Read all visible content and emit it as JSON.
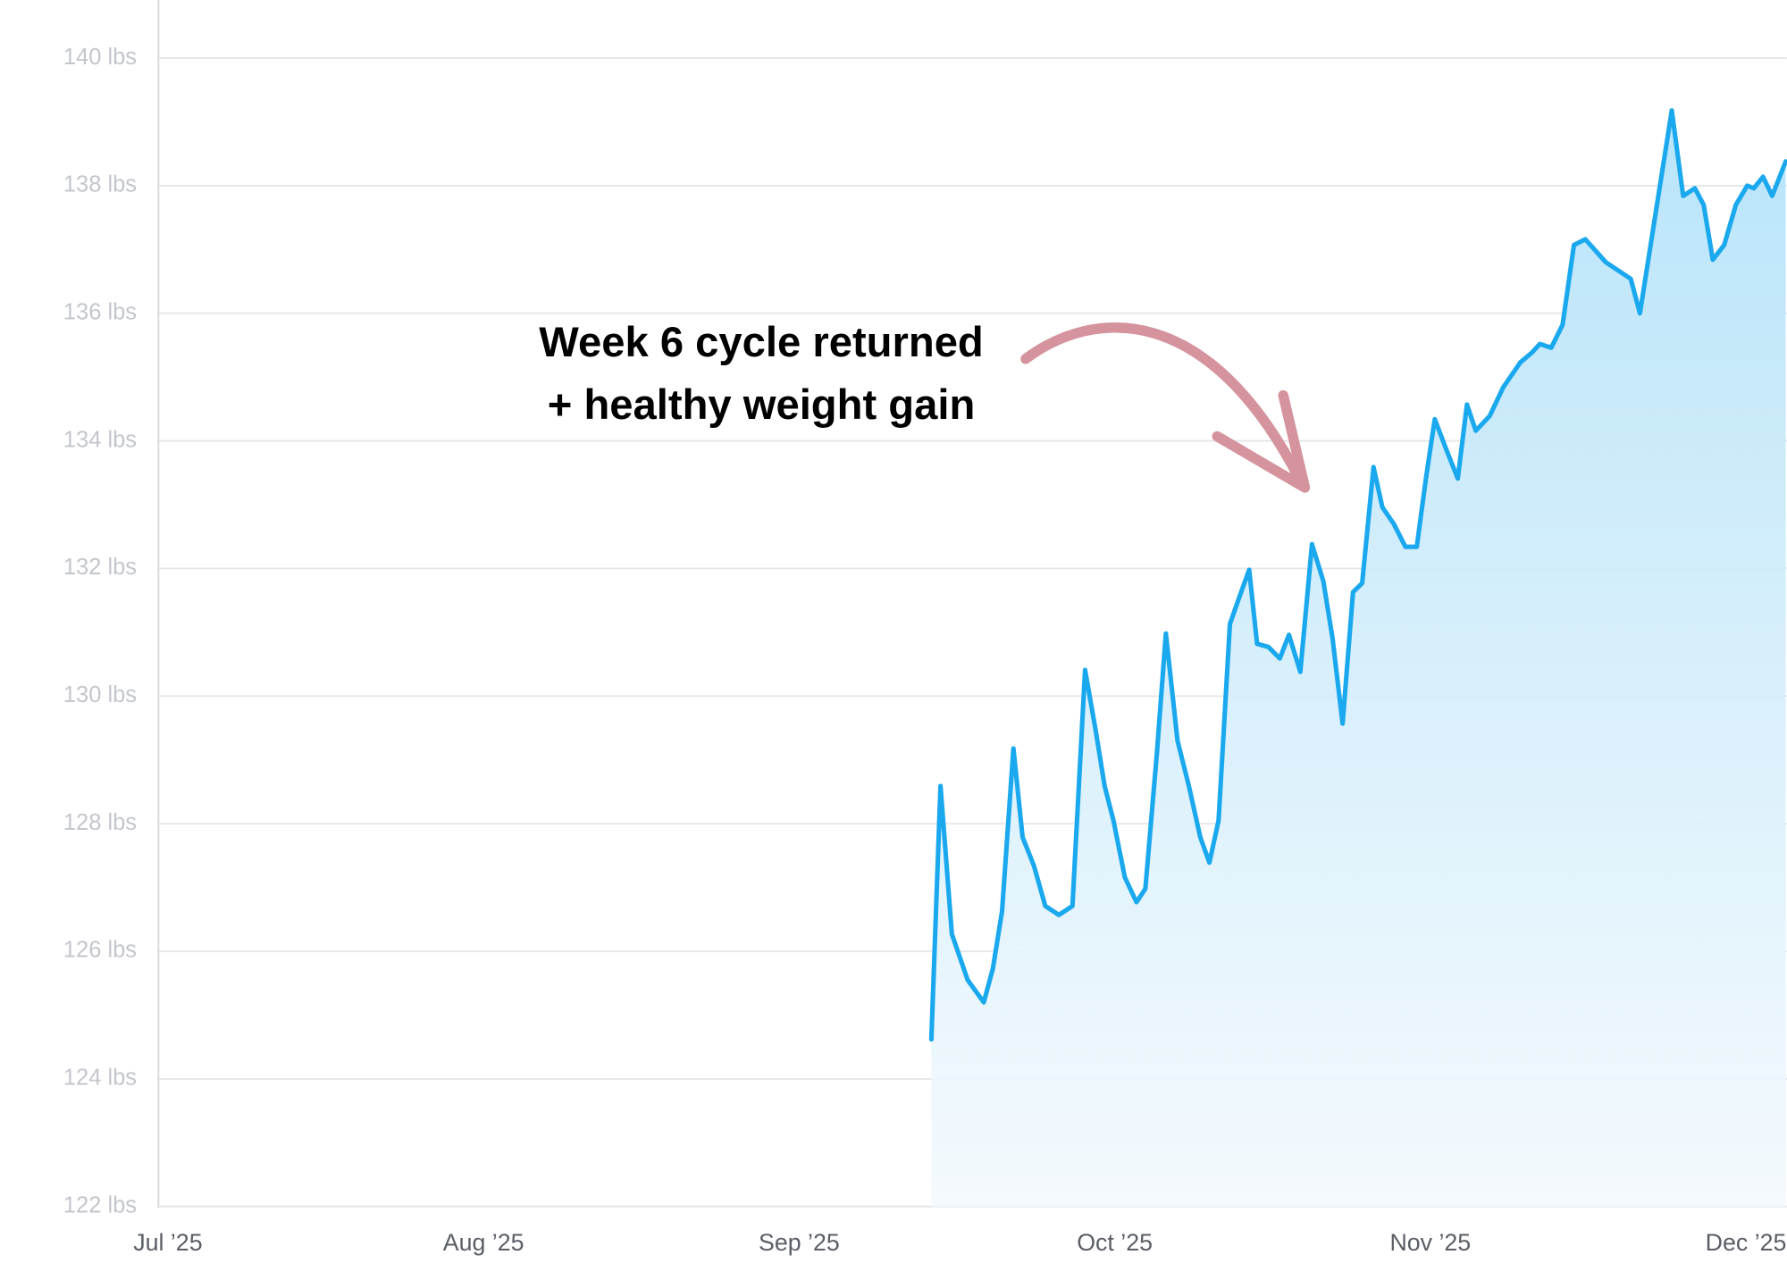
{
  "chart_data": {
    "type": "line",
    "annotation": [
      "Week 6 cycle returned",
      "+ healthy weight gain"
    ],
    "color": "#1aa8ee",
    "area": true,
    "grid": true,
    "x": [
      9.419,
      9.448,
      9.484,
      9.534,
      9.585,
      9.614,
      9.643,
      9.679,
      9.708,
      9.744,
      9.78,
      9.823,
      9.866,
      9.906,
      9.939,
      9.968,
      9.996,
      10.032,
      10.069,
      10.097,
      10.134,
      10.162,
      10.199,
      10.235,
      10.271,
      10.3,
      10.329,
      10.365,
      10.394,
      10.426,
      10.451,
      10.487,
      10.523,
      10.552,
      10.588,
      10.625,
      10.661,
      10.69,
      10.722,
      10.755,
      10.784,
      10.82,
      10.848,
      10.884,
      10.921,
      10.957,
      10.986,
      11.014,
      11.051,
      11.087,
      11.116,
      11.144,
      11.188,
      11.231,
      11.285,
      11.321,
      11.347,
      11.383,
      11.419,
      11.455,
      11.491,
      11.556,
      11.635,
      11.664,
      11.718,
      11.765,
      11.801,
      11.838,
      11.866,
      11.895,
      11.931,
      11.968,
      12.004,
      12.025,
      12.054,
      12.083,
      12.126
    ],
    "values": [
      124.62,
      128.59,
      126.27,
      125.55,
      125.2,
      125.73,
      126.63,
      129.18,
      127.79,
      127.34,
      126.71,
      126.57,
      126.71,
      130.41,
      129.48,
      128.59,
      128.05,
      127.16,
      126.77,
      126.98,
      129.13,
      130.98,
      129.3,
      128.59,
      127.79,
      127.39,
      128.05,
      131.13,
      131.54,
      131.98,
      130.82,
      130.77,
      130.59,
      130.96,
      130.38,
      132.38,
      131.8,
      130.91,
      129.57,
      131.63,
      131.77,
      133.59,
      132.96,
      132.7,
      132.34,
      132.34,
      133.41,
      134.34,
      133.86,
      133.41,
      134.57,
      134.16,
      134.39,
      134.84,
      135.23,
      135.38,
      135.52,
      135.46,
      135.82,
      137.07,
      137.16,
      136.8,
      136.54,
      136.0,
      137.7,
      139.18,
      137.84,
      137.96,
      137.7,
      136.84,
      137.07,
      137.7,
      138.0,
      137.96,
      138.14,
      137.84,
      138.38
    ],
    "xlim": [
      6.97,
      12.13
    ],
    "xticks": [
      {
        "value": 7,
        "label": "Jul ’25"
      },
      {
        "value": 8,
        "label": "Aug ’25"
      },
      {
        "value": 9,
        "label": "Sep ’25"
      },
      {
        "value": 10,
        "label": "Oct ’25"
      },
      {
        "value": 11,
        "label": "Nov ’25"
      },
      {
        "value": 12,
        "label": "Dec ’25"
      }
    ],
    "ylim": [
      122,
      140
    ],
    "yticks": [
      {
        "value": 122,
        "label": "122 lbs"
      },
      {
        "value": 124,
        "label": "124 lbs"
      },
      {
        "value": 126,
        "label": "126 lbs"
      },
      {
        "value": 128,
        "label": "128 lbs"
      },
      {
        "value": 130,
        "label": "130 lbs"
      },
      {
        "value": 132,
        "label": "132 lbs"
      },
      {
        "value": 134,
        "label": "134 lbs"
      },
      {
        "value": 136,
        "label": "136 lbs"
      },
      {
        "value": 138,
        "label": "138 lbs"
      },
      {
        "value": 140,
        "label": "140 lbs"
      }
    ]
  }
}
